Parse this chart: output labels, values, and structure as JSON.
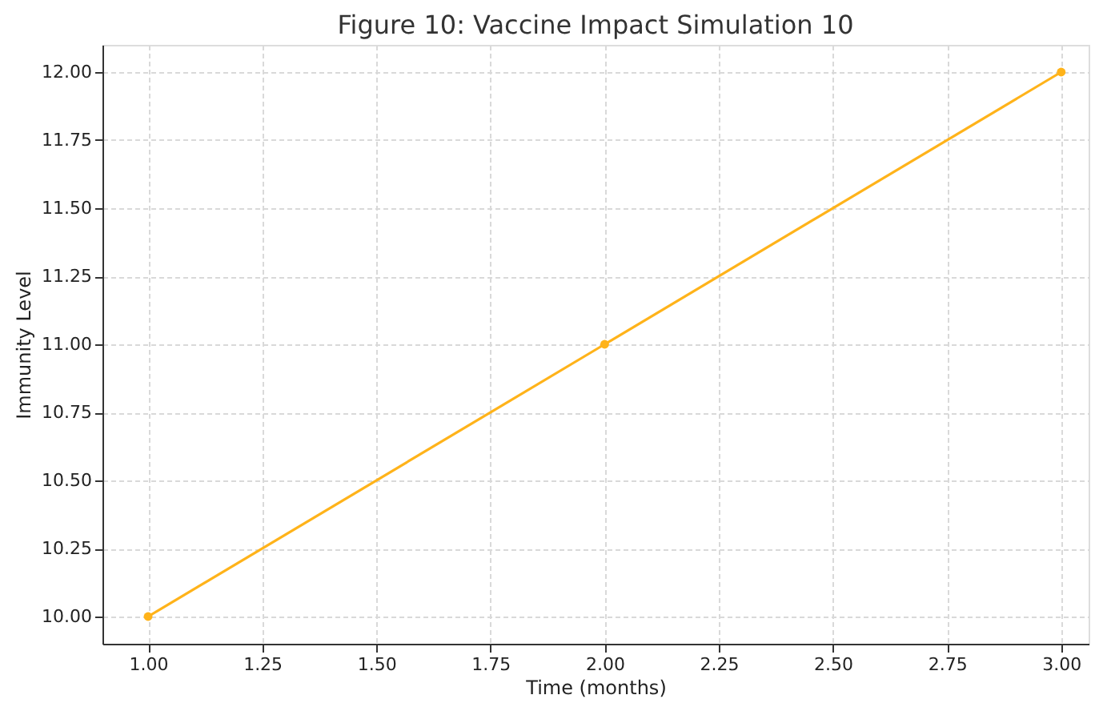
{
  "chart_data": {
    "type": "line",
    "title": "Figure 10: Vaccine Impact Simulation 10",
    "xlabel": "Time (months)",
    "ylabel": "Immunity Level",
    "x": [
      1,
      2,
      3
    ],
    "series": [
      {
        "color": "#ffb31a",
        "values": [
          10,
          11,
          12
        ]
      }
    ],
    "xlim": [
      0.9,
      3.06
    ],
    "ylim": [
      9.9,
      12.1
    ],
    "xticks": [
      {
        "value": 1,
        "label": "1.00"
      },
      {
        "value": 1.25,
        "label": "1.25"
      },
      {
        "value": 1.5,
        "label": "1.50"
      },
      {
        "value": 1.75,
        "label": "1.75"
      },
      {
        "value": 2,
        "label": "2.00"
      },
      {
        "value": 2.25,
        "label": "2.25"
      },
      {
        "value": 2.5,
        "label": "2.50"
      },
      {
        "value": 2.75,
        "label": "2.75"
      },
      {
        "value": 3,
        "label": "3.00"
      }
    ],
    "yticks": [
      {
        "value": 10,
        "label": "10.00"
      },
      {
        "value": 10.25,
        "label": "10.25"
      },
      {
        "value": 10.5,
        "label": "10.50"
      },
      {
        "value": 10.75,
        "label": "10.75"
      },
      {
        "value": 11,
        "label": "11.00"
      },
      {
        "value": 11.25,
        "label": "11.25"
      },
      {
        "value": 11.5,
        "label": "11.50"
      },
      {
        "value": 11.75,
        "label": "11.75"
      },
      {
        "value": 12,
        "label": "12.00"
      }
    ],
    "grid": true,
    "marker": "circle",
    "line_style": "solid"
  }
}
